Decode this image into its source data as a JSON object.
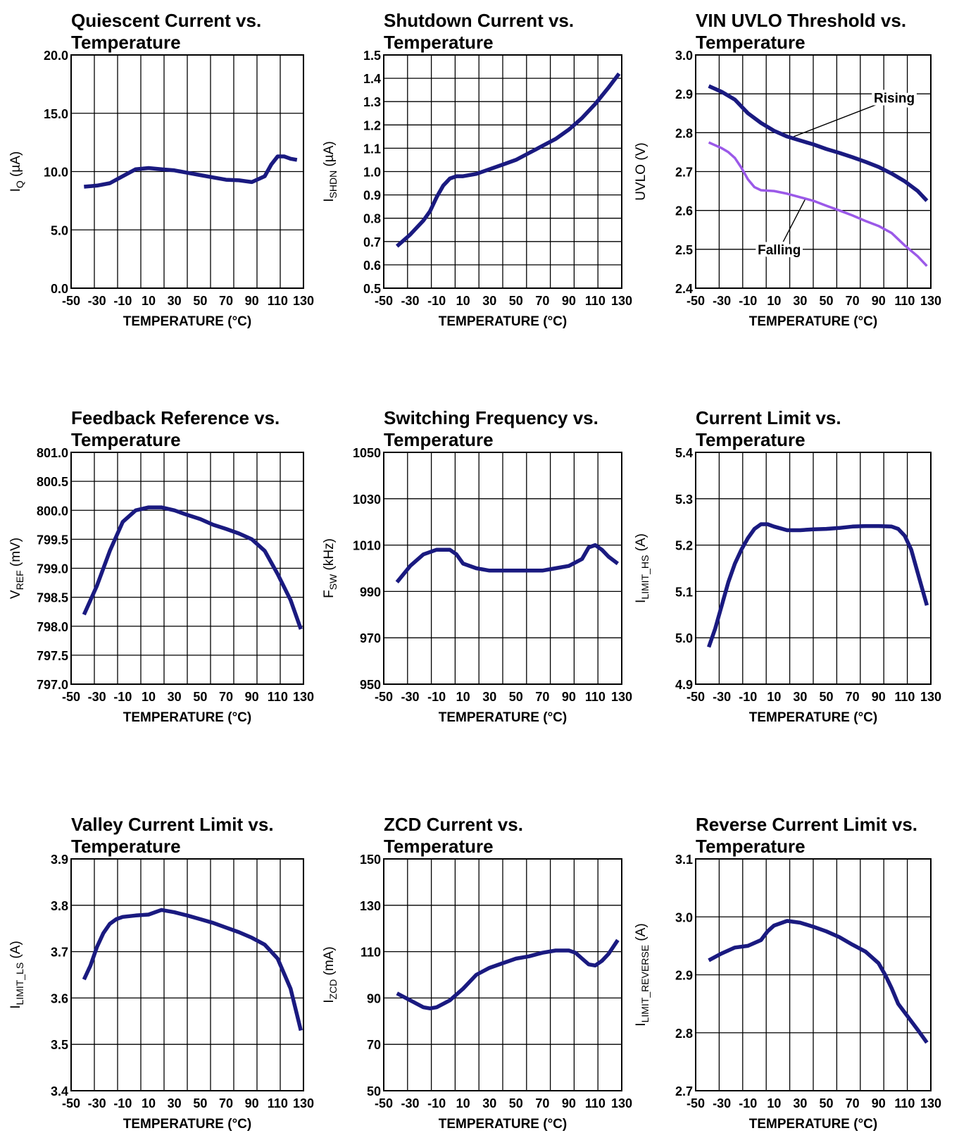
{
  "chart_data": [
    {
      "type": "line",
      "title": [
        "Quiescent Current vs.",
        "Temperature"
      ],
      "xlabel": "TEMPERATURE (°C)",
      "ylabel": {
        "main": "I",
        "sub": "Q",
        "tail": " (µA)"
      },
      "xlim": [
        -50,
        130
      ],
      "xticks": [
        "-50",
        "-30",
        "-10",
        "10",
        "30",
        "50",
        "70",
        "90",
        "110",
        "130"
      ],
      "ylim": [
        0,
        20
      ],
      "yticks": [
        "0.0",
        "5.0",
        "10.0",
        "15.0",
        "20.0"
      ],
      "grid": {
        "x": 10,
        "y": 4
      },
      "color": "#1a1a80",
      "series": [
        {
          "x": [
            -40,
            -30,
            -20,
            -10,
            0,
            10,
            20,
            30,
            40,
            50,
            60,
            70,
            80,
            90,
            100,
            105,
            110,
            115,
            120,
            125
          ],
          "y": [
            8.7,
            8.8,
            9.0,
            9.6,
            10.2,
            10.3,
            10.2,
            10.1,
            9.9,
            9.7,
            9.5,
            9.3,
            9.25,
            9.1,
            9.6,
            10.6,
            11.3,
            11.3,
            11.1,
            11.0
          ]
        }
      ]
    },
    {
      "type": "line",
      "title": [
        "Shutdown Current vs.",
        "Temperature"
      ],
      "xlabel": "TEMPERATURE (°C)",
      "ylabel": {
        "main": "I",
        "sub": "SHDN",
        "tail": " (µA)"
      },
      "xlim": [
        -50,
        130
      ],
      "xticks": [
        "-50",
        "-30",
        "-10",
        "10",
        "30",
        "50",
        "70",
        "90",
        "110",
        "130"
      ],
      "ylim": [
        0.5,
        1.5
      ],
      "yticks": [
        "0.5",
        "0.6",
        "0.7",
        "0.8",
        "0.9",
        "1.0",
        "1.1",
        "1.2",
        "1.3",
        "1.4",
        "1.5"
      ],
      "grid": {
        "x": 10,
        "y": 10
      },
      "color": "#1a1a80",
      "series": [
        {
          "x": [
            -40,
            -30,
            -20,
            -15,
            -10,
            -5,
            0,
            5,
            10,
            20,
            30,
            40,
            50,
            60,
            70,
            80,
            90,
            100,
            110,
            120,
            128
          ],
          "y": [
            0.68,
            0.73,
            0.79,
            0.83,
            0.89,
            0.94,
            0.97,
            0.98,
            0.98,
            0.99,
            1.01,
            1.03,
            1.05,
            1.08,
            1.11,
            1.14,
            1.18,
            1.23,
            1.29,
            1.36,
            1.42
          ]
        }
      ]
    },
    {
      "type": "line",
      "title": [
        "VIN UVLO Threshold vs.",
        "Temperature"
      ],
      "xlabel": "TEMPERATURE (°C)",
      "ylabel": {
        "main": "UVLO (V)",
        "sub": "",
        "tail": ""
      },
      "xlim": [
        -50,
        130
      ],
      "xticks": [
        "-50",
        "-30",
        "-10",
        "10",
        "30",
        "50",
        "70",
        "90",
        "110",
        "130"
      ],
      "ylim": [
        2.4,
        3.0
      ],
      "yticks": [
        "2.4",
        "2.5",
        "2.6",
        "2.7",
        "2.8",
        "2.9",
        "3.0"
      ],
      "grid": {
        "x": 10,
        "y": 6
      },
      "annotations": [
        {
          "text": "Rising",
          "x": 102,
          "y": 2.89,
          "tx": 25,
          "ty": 2.79,
          "anchor": "start"
        },
        {
          "text": "Falling",
          "x": 14,
          "y": 2.5,
          "tx": 34,
          "ty": 2.63,
          "anchor": "middle"
        }
      ],
      "series": [
        {
          "color": "#1a1a80",
          "x": [
            -40,
            -30,
            -20,
            -10,
            0,
            10,
            20,
            30,
            40,
            50,
            60,
            70,
            80,
            90,
            100,
            110,
            120,
            127
          ],
          "y": [
            2.92,
            2.905,
            2.885,
            2.85,
            2.825,
            2.805,
            2.79,
            2.78,
            2.77,
            2.758,
            2.748,
            2.737,
            2.725,
            2.712,
            2.695,
            2.675,
            2.65,
            2.625
          ]
        },
        {
          "color": "#9b59e8",
          "x": [
            -40,
            -30,
            -25,
            -20,
            -15,
            -10,
            -5,
            0,
            10,
            20,
            30,
            40,
            50,
            60,
            70,
            80,
            90,
            100,
            110,
            120,
            127
          ],
          "y": [
            2.775,
            2.76,
            2.75,
            2.735,
            2.71,
            2.68,
            2.66,
            2.652,
            2.65,
            2.643,
            2.634,
            2.625,
            2.612,
            2.6,
            2.587,
            2.573,
            2.56,
            2.542,
            2.51,
            2.482,
            2.457
          ]
        }
      ]
    },
    {
      "type": "line",
      "title": [
        "Feedback Reference vs.",
        "Temperature"
      ],
      "xlabel": "TEMPERATURE (°C)",
      "ylabel": {
        "main": "V",
        "sub": "REF",
        "tail": " (mV)"
      },
      "xlim": [
        -50,
        130
      ],
      "xticks": [
        "-50",
        "-30",
        "-10",
        "10",
        "30",
        "50",
        "70",
        "90",
        "110",
        "130"
      ],
      "ylim": [
        797.0,
        801.0
      ],
      "yticks": [
        "797.0",
        "797.5",
        "798.0",
        "798.5",
        "799.0",
        "799.5",
        "800.0",
        "800.5",
        "801.0"
      ],
      "grid": {
        "x": 10,
        "y": 8
      },
      "color": "#1a1a80",
      "series": [
        {
          "x": [
            -40,
            -30,
            -20,
            -10,
            0,
            10,
            20,
            30,
            40,
            50,
            60,
            70,
            80,
            90,
            100,
            110,
            120,
            128
          ],
          "y": [
            798.2,
            798.7,
            799.3,
            799.8,
            800.0,
            800.05,
            800.05,
            800.0,
            799.92,
            799.85,
            799.75,
            799.68,
            799.6,
            799.5,
            799.3,
            798.9,
            798.45,
            797.95
          ]
        }
      ]
    },
    {
      "type": "line",
      "title": [
        "Switching Frequency vs.",
        "Temperature"
      ],
      "xlabel": "TEMPERATURE (°C)",
      "ylabel": {
        "main": "F",
        "sub": "SW",
        "tail": " (kHz)"
      },
      "xlim": [
        -50,
        130
      ],
      "xticks": [
        "-50",
        "-30",
        "-10",
        "10",
        "30",
        "50",
        "70",
        "90",
        "110",
        "130"
      ],
      "ylim": [
        950,
        1050
      ],
      "yticks": [
        "950",
        "970",
        "990",
        "1010",
        "1030",
        "1050"
      ],
      "grid": {
        "x": 10,
        "y": 5
      },
      "color": "#1a1a80",
      "series": [
        {
          "x": [
            -40,
            -30,
            -20,
            -10,
            0,
            5,
            10,
            20,
            30,
            40,
            50,
            60,
            70,
            80,
            90,
            100,
            105,
            110,
            115,
            120,
            127
          ],
          "y": [
            994,
            1001,
            1006,
            1008,
            1008,
            1006,
            1002,
            1000,
            999,
            999,
            999,
            999,
            999,
            1000,
            1001,
            1004,
            1009,
            1010,
            1008,
            1005,
            1002
          ]
        }
      ]
    },
    {
      "type": "line",
      "title": [
        "Current Limit vs.",
        "Temperature"
      ],
      "xlabel": "TEMPERATURE (°C)",
      "ylabel": {
        "main": "I",
        "sub": "LIMIT_HS",
        "tail": " (A)"
      },
      "xlim": [
        -50,
        130
      ],
      "xticks": [
        "-50",
        "-30",
        "-10",
        "10",
        "30",
        "50",
        "70",
        "90",
        "110",
        "130"
      ],
      "ylim": [
        4.9,
        5.4
      ],
      "yticks": [
        "4.9",
        "5.0",
        "5.1",
        "5.2",
        "5.3",
        "5.4"
      ],
      "grid": {
        "x": 10,
        "y": 5
      },
      "color": "#1a1a80",
      "series": [
        {
          "x": [
            -40,
            -35,
            -30,
            -25,
            -20,
            -15,
            -10,
            -5,
            0,
            5,
            10,
            20,
            30,
            40,
            50,
            60,
            70,
            80,
            90,
            100,
            105,
            110,
            115,
            120,
            127
          ],
          "y": [
            4.98,
            5.02,
            5.07,
            5.12,
            5.16,
            5.19,
            5.215,
            5.235,
            5.245,
            5.245,
            5.24,
            5.232,
            5.232,
            5.234,
            5.235,
            5.237,
            5.24,
            5.241,
            5.241,
            5.24,
            5.235,
            5.22,
            5.19,
            5.14,
            5.07
          ]
        }
      ]
    },
    {
      "type": "line",
      "title": [
        "Valley Current Limit vs.",
        "Temperature"
      ],
      "xlabel": "TEMPERATURE (°C)",
      "ylabel": {
        "main": "I",
        "sub": "LIMIT_LS",
        "tail": " (A)"
      },
      "xlim": [
        -50,
        130
      ],
      "xticks": [
        "-50",
        "-30",
        "-10",
        "10",
        "30",
        "50",
        "70",
        "90",
        "110",
        "130"
      ],
      "ylim": [
        3.4,
        3.9
      ],
      "yticks": [
        "3.4",
        "3.5",
        "3.6",
        "3.7",
        "3.8",
        "3.9"
      ],
      "grid": {
        "x": 10,
        "y": 5
      },
      "color": "#1a1a80",
      "series": [
        {
          "x": [
            -40,
            -35,
            -30,
            -25,
            -20,
            -15,
            -10,
            0,
            10,
            20,
            30,
            40,
            50,
            60,
            70,
            80,
            90,
            100,
            110,
            120,
            128
          ],
          "y": [
            3.64,
            3.67,
            3.71,
            3.74,
            3.76,
            3.77,
            3.775,
            3.778,
            3.78,
            3.79,
            3.785,
            3.778,
            3.77,
            3.762,
            3.752,
            3.742,
            3.73,
            3.715,
            3.685,
            3.62,
            3.53
          ]
        }
      ]
    },
    {
      "type": "line",
      "title": [
        "ZCD Current vs.",
        "Temperature"
      ],
      "xlabel": "TEMPERATURE (°C)",
      "ylabel": {
        "main": "I",
        "sub": "ZCD",
        "tail": " (mA)"
      },
      "xlim": [
        -50,
        130
      ],
      "xticks": [
        "-50",
        "-30",
        "-10",
        "10",
        "30",
        "50",
        "70",
        "90",
        "110",
        "130"
      ],
      "ylim": [
        50,
        150
      ],
      "yticks": [
        "50",
        "70",
        "90",
        "110",
        "130",
        "150"
      ],
      "grid": {
        "x": 10,
        "y": 5
      },
      "color": "#1a1a80",
      "series": [
        {
          "x": [
            -40,
            -30,
            -20,
            -15,
            -10,
            0,
            10,
            20,
            30,
            40,
            50,
            60,
            70,
            80,
            90,
            95,
            100,
            105,
            110,
            115,
            120,
            127
          ],
          "y": [
            92,
            89,
            86,
            85.5,
            86,
            89,
            94,
            100,
            103,
            105,
            107,
            108,
            109.5,
            110.5,
            110.5,
            109.5,
            107,
            104.5,
            104,
            106,
            109,
            115
          ]
        }
      ]
    },
    {
      "type": "line",
      "title": [
        "Reverse Current Limit vs.",
        "Temperature"
      ],
      "xlabel": "TEMPERATURE (°C)",
      "ylabel": {
        "main": "I",
        "sub": "LIMIT_REVERSE",
        "tail": " (A)"
      },
      "xlim": [
        -50,
        130
      ],
      "xticks": [
        "-50",
        "-30",
        "-10",
        "10",
        "30",
        "50",
        "70",
        "90",
        "110",
        "130"
      ],
      "ylim": [
        2.7,
        3.1
      ],
      "yticks": [
        "2.7",
        "2.8",
        "2.9",
        "3.0",
        "3.1"
      ],
      "grid": {
        "x": 10,
        "y": 4
      },
      "color": "#1a1a80",
      "series": [
        {
          "x": [
            -40,
            -30,
            -20,
            -10,
            0,
            5,
            10,
            20,
            30,
            40,
            50,
            60,
            70,
            80,
            90,
            95,
            100,
            105,
            110,
            120,
            127
          ],
          "y": [
            2.925,
            2.937,
            2.947,
            2.95,
            2.96,
            2.975,
            2.985,
            2.993,
            2.99,
            2.983,
            2.975,
            2.965,
            2.952,
            2.94,
            2.92,
            2.9,
            2.877,
            2.85,
            2.835,
            2.805,
            2.783
          ]
        }
      ]
    }
  ]
}
